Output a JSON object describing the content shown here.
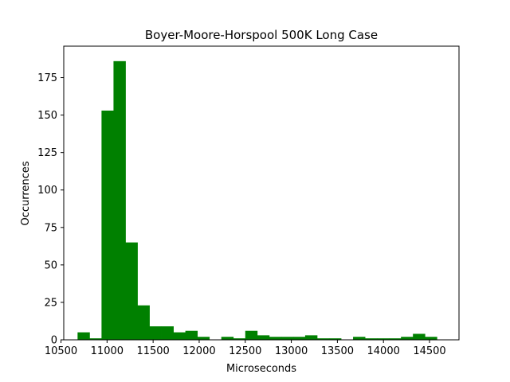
{
  "chart_data": {
    "type": "bar",
    "title": "Boyer-Moore-Horspool 500K Long Case",
    "xlabel": "Microseconds",
    "ylabel": "Occurrences",
    "xlim": [
      10530,
      14820
    ],
    "ylim": [
      0,
      196
    ],
    "xticks": [
      10500,
      11000,
      11500,
      12000,
      12500,
      13000,
      13500,
      14000,
      14500
    ],
    "yticks": [
      0,
      25,
      50,
      75,
      100,
      125,
      150,
      175
    ],
    "bin_edges": [
      10680,
      10810,
      10940,
      11070,
      11200,
      11330,
      11460,
      11590,
      11720,
      11850,
      11980,
      12110,
      12240,
      12370,
      12500,
      12630,
      12760,
      12890,
      13020,
      13150,
      13280,
      13410,
      13540,
      13670,
      13800,
      13930,
      14060,
      14190,
      14320,
      14450,
      14580
    ],
    "bar_heights": [
      5,
      1,
      153,
      186,
      65,
      23,
      9,
      9,
      5,
      6,
      2,
      0,
      2,
      1,
      6,
      3,
      2,
      2,
      2,
      3,
      1,
      1,
      0,
      2,
      1,
      1,
      1,
      2,
      4,
      2
    ],
    "bar_color": "#008000",
    "grid": false,
    "legend": false
  }
}
